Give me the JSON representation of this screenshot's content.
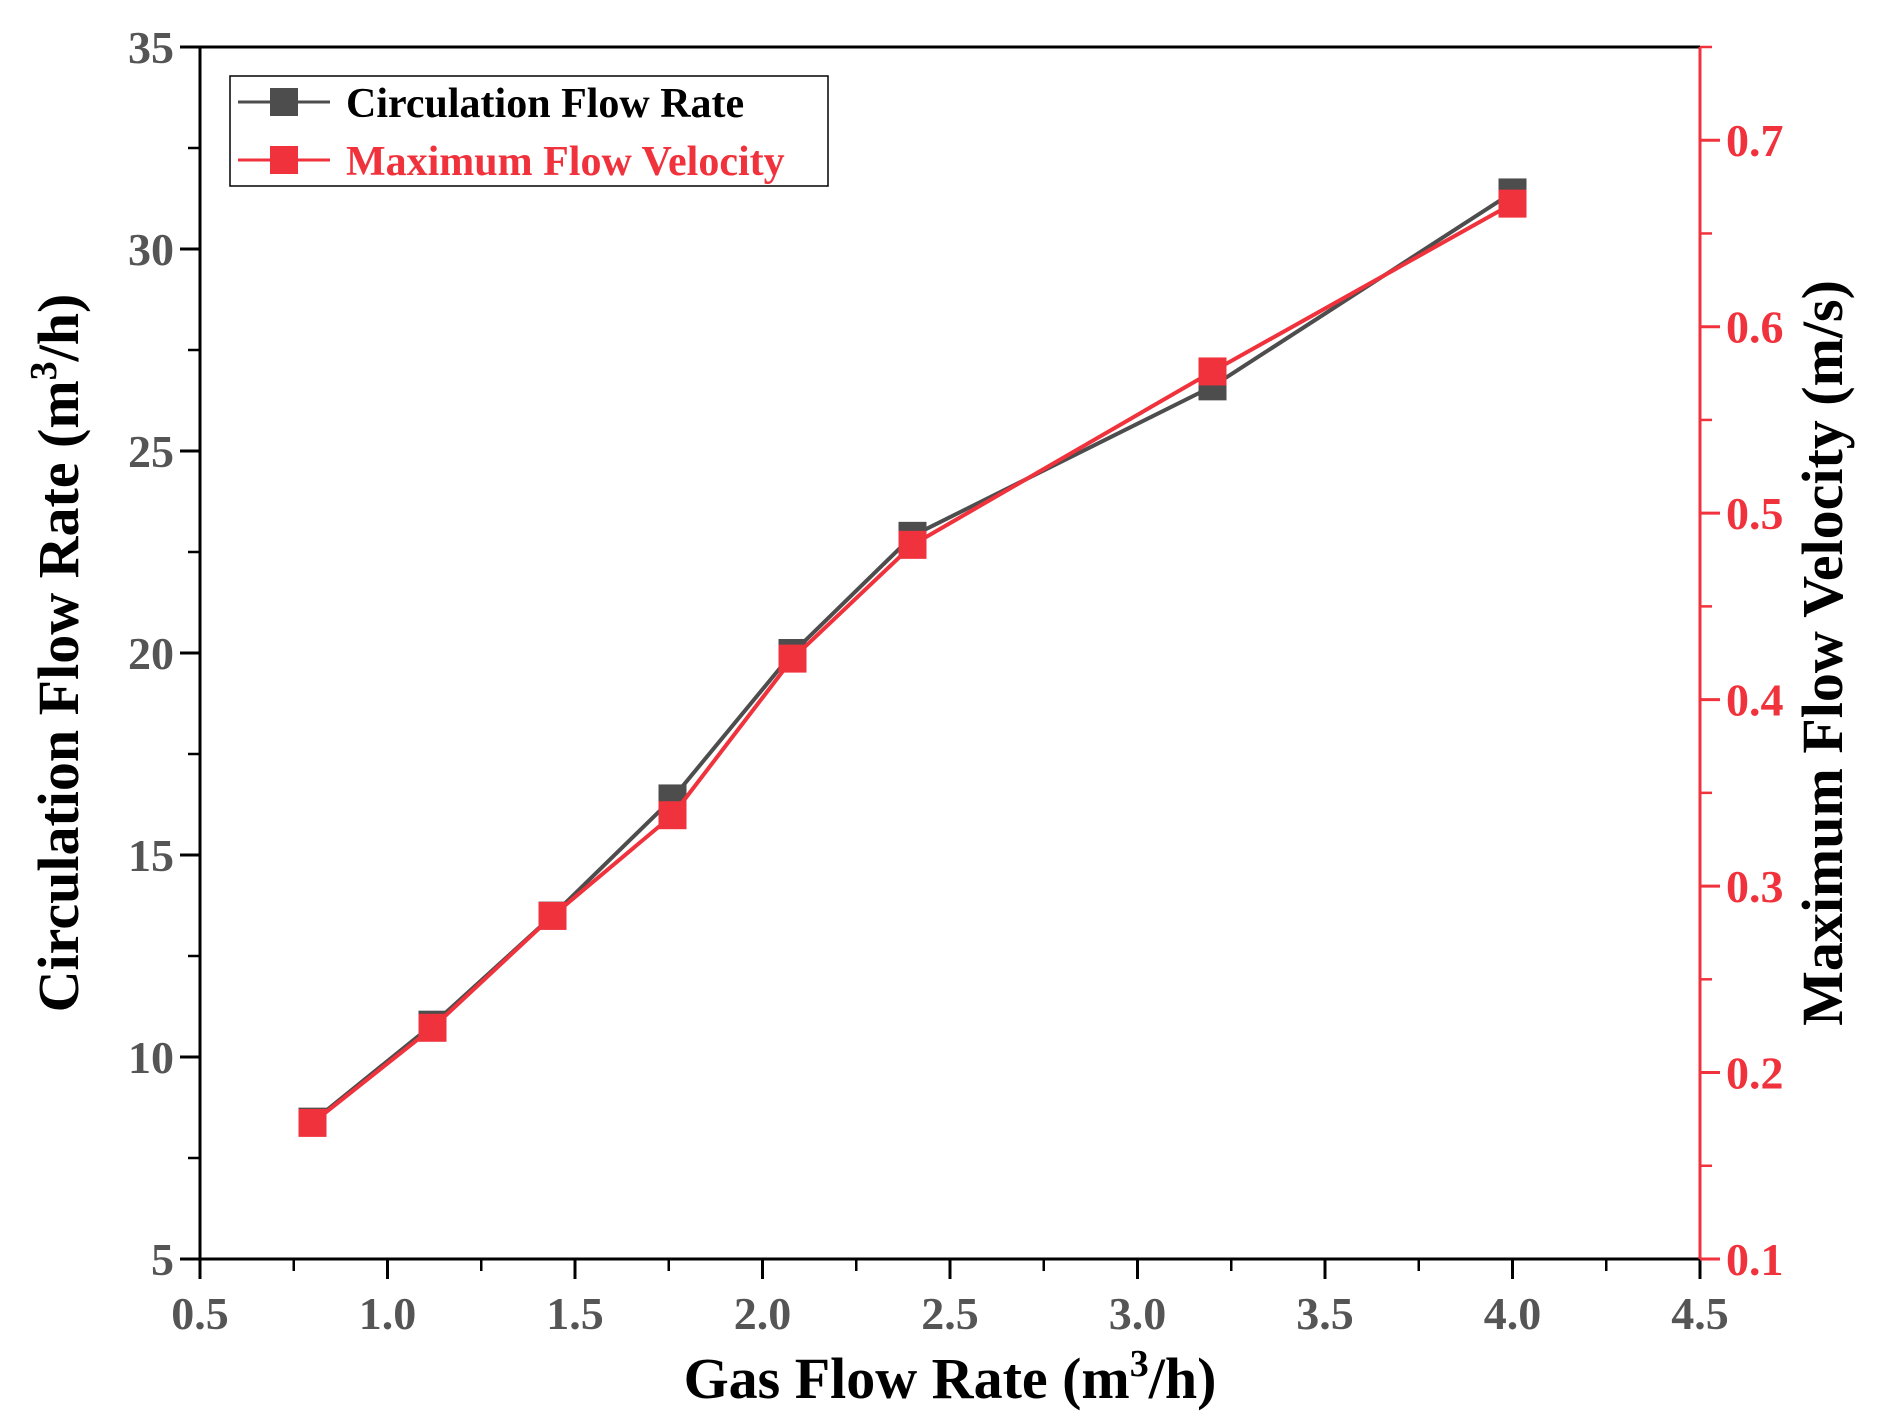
{
  "chart_data": {
    "type": "line",
    "x": [
      0.8,
      1.12,
      1.44,
      1.76,
      2.08,
      2.4,
      3.2,
      4.0
    ],
    "series": [
      {
        "name": "Circulation Flow Rate",
        "axis": "left",
        "color": "#4d4d4d",
        "marker": "square",
        "values": [
          8.4,
          10.8,
          13.5,
          16.4,
          20.0,
          22.9,
          26.6,
          31.4
        ]
      },
      {
        "name": "Maximum Flow Velocity",
        "axis": "right",
        "color": "#f0323c",
        "marker": "square",
        "values": [
          0.173,
          0.224,
          0.284,
          0.338,
          0.422,
          0.483,
          0.576,
          0.666
        ]
      }
    ],
    "xlabel": {
      "prefix": "Gas Flow Rate (m",
      "sup": "3",
      "suffix": "/h)"
    },
    "ylabel_left": {
      "prefix": "Circulation Flow Rate (m",
      "sup": "3",
      "suffix": "/h)"
    },
    "ylabel_right": "Maximum Flow Velocity (m/s)",
    "xlim": [
      0.5,
      4.5
    ],
    "ylim_left": [
      5,
      35
    ],
    "ylim_right": [
      0.1,
      0.75
    ],
    "xticks": [
      "0.5",
      "1.0",
      "1.5",
      "2.0",
      "2.5",
      "3.0",
      "3.5",
      "4.0",
      "4.5"
    ],
    "yticks_left": [
      "5",
      "10",
      "15",
      "20",
      "25",
      "30",
      "35"
    ],
    "yticks_right": [
      "0.1",
      "0.2",
      "0.3",
      "0.4",
      "0.5",
      "0.6",
      "0.7"
    ],
    "grid": false,
    "legend": "top-left",
    "right_axis_color": "#f0323c"
  }
}
